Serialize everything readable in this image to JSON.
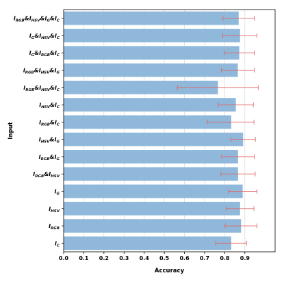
{
  "chart_data": {
    "type": "bar",
    "orientation": "horizontal",
    "xlabel": "Accuracy",
    "ylabel": "Input",
    "xlim": [
      0.0,
      1.05
    ],
    "xticks": [
      "0.0",
      "0.1",
      "0.2",
      "0.3",
      "0.4",
      "0.5",
      "0.6",
      "0.7",
      "0.8",
      "0.9"
    ],
    "grid": "x",
    "bar_color": "#8fb8db",
    "error_color": "#e06666",
    "categories": [
      {
        "label": [
          [
            "I",
            ""
          ],
          [
            "C",
            "sub"
          ]
        ],
        "value": 0.832,
        "err_low": 0.755,
        "err_high": 0.908
      },
      {
        "label": [
          [
            "I",
            ""
          ],
          [
            "RGB",
            "sub"
          ]
        ],
        "value": 0.881,
        "err_low": 0.802,
        "err_high": 0.96
      },
      {
        "label": [
          [
            "I",
            ""
          ],
          [
            "HSV",
            "sub"
          ]
        ],
        "value": 0.876,
        "err_low": 0.807,
        "err_high": 0.945
      },
      {
        "label": [
          [
            "I",
            ""
          ],
          [
            "G",
            "sub"
          ]
        ],
        "value": 0.889,
        "err_low": 0.818,
        "err_high": 0.96
      },
      {
        "label": [
          [
            "I",
            ""
          ],
          [
            "RGB",
            "sub"
          ],
          [
            "&I",
            ""
          ],
          [
            "HSV",
            "sub"
          ]
        ],
        "value": 0.866,
        "err_low": 0.781,
        "err_high": 0.951
      },
      {
        "label": [
          [
            "I",
            ""
          ],
          [
            "RGB",
            "sub"
          ],
          [
            "&I",
            ""
          ],
          [
            "G",
            "sub"
          ]
        ],
        "value": 0.866,
        "err_low": 0.785,
        "err_high": 0.947
      },
      {
        "label": [
          [
            "I",
            ""
          ],
          [
            "HSV",
            "sub"
          ],
          [
            "&I",
            ""
          ],
          [
            "G",
            "sub"
          ]
        ],
        "value": 0.891,
        "err_low": 0.83,
        "err_high": 0.952
      },
      {
        "label": [
          [
            "I",
            ""
          ],
          [
            "RGB",
            "sub"
          ],
          [
            "&I",
            ""
          ],
          [
            "C",
            "sub"
          ]
        ],
        "value": 0.832,
        "err_low": 0.713,
        "err_high": 0.945
      },
      {
        "label": [
          [
            "I",
            ""
          ],
          [
            "HSV",
            "sub"
          ],
          [
            "&I",
            ""
          ],
          [
            "C",
            "sub"
          ]
        ],
        "value": 0.855,
        "err_low": 0.768,
        "err_high": 0.942
      },
      {
        "label": [
          [
            "I",
            ""
          ],
          [
            "RGB",
            "sub"
          ],
          [
            "&I",
            ""
          ],
          [
            "HSV",
            "sub"
          ],
          [
            "&I",
            ""
          ],
          [
            "C",
            "sub"
          ]
        ],
        "value": 0.766,
        "err_low": 0.565,
        "err_high": 0.966
      },
      {
        "label": [
          [
            "I",
            ""
          ],
          [
            "RGB",
            "sub"
          ],
          [
            "&I",
            ""
          ],
          [
            "HSV",
            "sub"
          ],
          [
            "&I",
            ""
          ],
          [
            "G",
            "sub"
          ]
        ],
        "value": 0.865,
        "err_low": 0.783,
        "err_high": 0.947
      },
      {
        "label": [
          [
            "I",
            ""
          ],
          [
            "G",
            "sub"
          ],
          [
            "&I",
            ""
          ],
          [
            "RGB",
            "sub"
          ],
          [
            "&I",
            ""
          ],
          [
            "C",
            "sub"
          ]
        ],
        "value": 0.872,
        "err_low": 0.797,
        "err_high": 0.947
      },
      {
        "label": [
          [
            "I",
            ""
          ],
          [
            "G",
            "sub"
          ],
          [
            "&I",
            ""
          ],
          [
            "HSV",
            "sub"
          ],
          [
            "&I",
            ""
          ],
          [
            "C",
            "sub"
          ]
        ],
        "value": 0.876,
        "err_low": 0.79,
        "err_high": 0.96
      },
      {
        "label": [
          [
            "I",
            ""
          ],
          [
            "RGB",
            "sub"
          ],
          [
            "&I",
            ""
          ],
          [
            "HSV",
            "sub"
          ],
          [
            "&I",
            ""
          ],
          [
            "G",
            "sub"
          ],
          [
            "&I",
            ""
          ],
          [
            "C",
            "sub"
          ]
        ],
        "value": 0.869,
        "err_low": 0.791,
        "err_high": 0.947
      }
    ]
  }
}
